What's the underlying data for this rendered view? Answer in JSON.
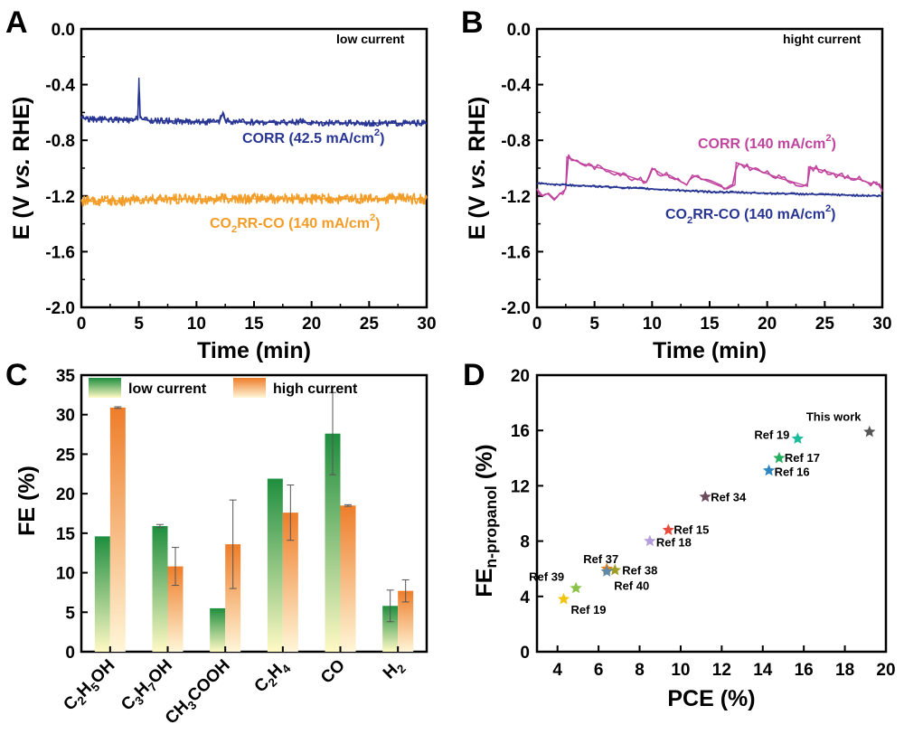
{
  "chart_data": [
    {
      "panel": "A",
      "type": "line",
      "tag": "low current",
      "xlabel": "Time (min)",
      "ylabel_parts": [
        "E (V ",
        "vs.",
        " RHE)"
      ],
      "xlim": [
        0,
        30
      ],
      "ylim": [
        -2.0,
        0.0
      ],
      "xticks": [
        "0",
        "5",
        "10",
        "15",
        "20",
        "25",
        "30"
      ],
      "yticks": [
        "0.0",
        "-0.4",
        "-0.8",
        "-1.2",
        "-1.6",
        "-2.0"
      ],
      "series": [
        {
          "name": "CORR",
          "label_parts": [
            "CORR (42.5 mA/cm",
            "2",
            ")"
          ],
          "color": "#283593",
          "x": [
            0,
            0.3,
            0.8,
            1.5,
            2.5,
            3.5,
            4.5,
            4.9,
            5.0,
            5.1,
            5.3,
            6,
            7,
            8,
            9,
            10,
            11,
            12,
            12.3,
            12.4,
            12.6,
            13,
            14,
            15,
            16,
            17,
            18,
            19,
            19.1,
            19.3,
            20,
            21,
            22,
            23,
            24,
            25,
            26,
            27,
            28,
            29,
            30
          ],
          "y": [
            -0.63,
            -0.64,
            -0.65,
            -0.65,
            -0.65,
            -0.655,
            -0.66,
            -0.64,
            -0.35,
            -0.62,
            -0.65,
            -0.66,
            -0.66,
            -0.662,
            -0.665,
            -0.665,
            -0.668,
            -0.668,
            -0.6,
            -0.64,
            -0.66,
            -0.668,
            -0.668,
            -0.67,
            -0.67,
            -0.672,
            -0.672,
            -0.672,
            -0.655,
            -0.672,
            -0.673,
            -0.674,
            -0.674,
            -0.675,
            -0.675,
            -0.676,
            -0.676,
            -0.677,
            -0.677,
            -0.678,
            -0.678
          ],
          "noise": 0.022,
          "noise_period": 0.07
        },
        {
          "name": "CO2RR-CO",
          "label_parts": [
            "CO",
            "2",
            "RR-CO (140 mA/cm",
            "2",
            ")"
          ],
          "color": "#F39C27",
          "x": [
            0,
            5,
            10,
            15,
            20,
            25,
            30
          ],
          "y": [
            -1.24,
            -1.23,
            -1.22,
            -1.22,
            -1.22,
            -1.22,
            -1.22
          ],
          "noise": 0.038,
          "noise_period": 0.06
        }
      ]
    },
    {
      "panel": "B",
      "type": "line",
      "tag": "hight current",
      "xlabel": "Time (min)",
      "ylabel_parts": [
        "E (V ",
        "vs.",
        " RHE)"
      ],
      "xlim": [
        0,
        30
      ],
      "ylim": [
        -2.0,
        0.0
      ],
      "xticks": [
        "0",
        "5",
        "10",
        "15",
        "20",
        "25",
        "30"
      ],
      "yticks": [
        "0.0",
        "-0.4",
        "-0.8",
        "-1.2",
        "-1.6",
        "-2.0"
      ],
      "series": [
        {
          "name": "CORR",
          "label_parts": [
            "CORR (140 mA/cm",
            "2",
            ")"
          ],
          "color": "#C0439E",
          "x": [
            0,
            0.5,
            1,
            1.5,
            2.5,
            2.6,
            4,
            6,
            8,
            9.5,
            10,
            11,
            11.5,
            13,
            13.5,
            15,
            16.5,
            17.2,
            17.3,
            19,
            21,
            23.5,
            23.6,
            25,
            27,
            28,
            29,
            29.5,
            30
          ],
          "y": [
            -1.15,
            -1.2,
            -1.18,
            -1.22,
            -1.15,
            -0.92,
            -0.97,
            -1.01,
            -1.06,
            -1.1,
            -1.0,
            -1.05,
            -1.05,
            -1.12,
            -1.05,
            -1.1,
            -1.15,
            -1.12,
            -0.96,
            -1.01,
            -1.07,
            -1.13,
            -0.99,
            -1.02,
            -1.07,
            -1.08,
            -1.11,
            -1.1,
            -1.16
          ],
          "noise": 0.022,
          "noise_period": 0.25
        },
        {
          "name": "CO2RR-CO",
          "label_parts": [
            "CO",
            "2",
            "RR-CO (140 mA/cm",
            "2",
            ")"
          ],
          "color": "#283593",
          "x": [
            0,
            5,
            10,
            15,
            20,
            25,
            30
          ],
          "y": [
            -1.11,
            -1.13,
            -1.15,
            -1.17,
            -1.18,
            -1.19,
            -1.2
          ],
          "noise": 0.008,
          "noise_period": 0.1
        }
      ]
    },
    {
      "panel": "C",
      "type": "bar",
      "ylabel": "FE (%)",
      "ylim": [
        0,
        35
      ],
      "yticks": [
        "0",
        "5",
        "10",
        "15",
        "20",
        "25",
        "30",
        "35"
      ],
      "categories": [
        "C2H5OH",
        "C3H7OH",
        "CH3COOH",
        "C2H4",
        "CO",
        "H2"
      ],
      "category_parts": [
        [
          "C",
          "2",
          "H",
          "5",
          "OH"
        ],
        [
          "C",
          "3",
          "H",
          "7",
          "OH"
        ],
        [
          "CH",
          "3",
          "COOH"
        ],
        [
          "C",
          "2",
          "H",
          "4"
        ],
        [
          "CO"
        ],
        [
          "H",
          "2"
        ]
      ],
      "series": [
        {
          "name": "low current",
          "colors": [
            "#1E8E3E",
            "#FFF9C4"
          ],
          "values": [
            14.6,
            15.9,
            5.5,
            21.9,
            27.6,
            5.8
          ],
          "errors": [
            0,
            0.2,
            0,
            0,
            5.2,
            2.0
          ]
        },
        {
          "name": "high current",
          "colors": [
            "#EE7D2A",
            "#FFF6D8"
          ],
          "values": [
            30.9,
            10.8,
            13.6,
            17.6,
            18.5,
            7.7
          ],
          "errors": [
            0.1,
            2.4,
            5.6,
            3.5,
            0.1,
            1.4
          ]
        }
      ]
    },
    {
      "panel": "D",
      "type": "scatter",
      "xlabel": "PCE (%)",
      "ylabel_parts": [
        "FE",
        "n-propanol",
        " (%)"
      ],
      "xlim": [
        3,
        20
      ],
      "ylim": [
        0,
        20
      ],
      "xticks": [
        "4",
        "6",
        "8",
        "10",
        "12",
        "14",
        "16",
        "18",
        "20"
      ],
      "yticks": [
        "0",
        "4",
        "8",
        "12",
        "16",
        "20"
      ],
      "points": [
        {
          "label": "This work",
          "x": 19.2,
          "y": 15.9,
          "color": "#555555",
          "label_color": "#D32F2F"
        },
        {
          "label": "Ref 19",
          "x": 15.7,
          "y": 15.4,
          "color": "#1ABC9C",
          "label_color": "#000000"
        },
        {
          "label": "Ref 17",
          "x": 14.8,
          "y": 14.0,
          "color": "#27AE60",
          "label_color": "#000000"
        },
        {
          "label": "Ref 16",
          "x": 14.3,
          "y": 13.1,
          "color": "#2E86C1",
          "label_color": "#000000"
        },
        {
          "label": "Ref 34",
          "x": 11.2,
          "y": 11.2,
          "color": "#6D4C5E",
          "label_color": "#000000"
        },
        {
          "label": "Ref 15",
          "x": 9.4,
          "y": 8.8,
          "color": "#E74C3C",
          "label_color": "#000000"
        },
        {
          "label": "Ref 18",
          "x": 8.5,
          "y": 8.0,
          "color": "#B39DDB",
          "label_color": "#000000"
        },
        {
          "label": "Ref 37",
          "x": 6.4,
          "y": 6.0,
          "color": "#E67E22",
          "label_color": "#000000"
        },
        {
          "label": "Ref 38",
          "x": 6.8,
          "y": 5.9,
          "color": "#9E9D24",
          "label_color": "#000000"
        },
        {
          "label": "Ref 40",
          "x": 6.4,
          "y": 5.8,
          "color": "#5D8AA8",
          "label_color": "#000000"
        },
        {
          "label": "Ref 39",
          "x": 4.9,
          "y": 4.6,
          "color": "#8BC34A",
          "label_color": "#000000"
        },
        {
          "label": "Ref 19",
          "x": 4.3,
          "y": 3.8,
          "color": "#F1C40F",
          "label_color": "#000000"
        }
      ]
    }
  ]
}
